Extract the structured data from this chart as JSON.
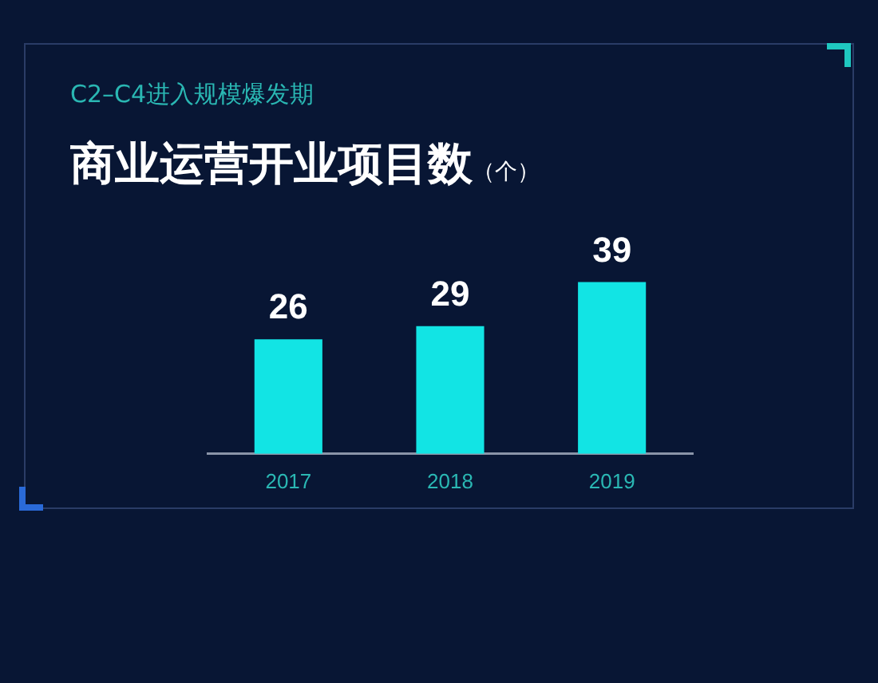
{
  "chart_data": {
    "type": "bar",
    "subtitle": "C2–C4进入规模爆发期",
    "title": "商业运营开业项目数",
    "ylabel": "（个）",
    "categories": [
      "2017",
      "2018",
      "2019"
    ],
    "values": [
      26,
      29,
      39
    ],
    "color": "#12e4e4",
    "data_labels": true,
    "grid": false,
    "legend": false,
    "tick_labels": "x"
  }
}
